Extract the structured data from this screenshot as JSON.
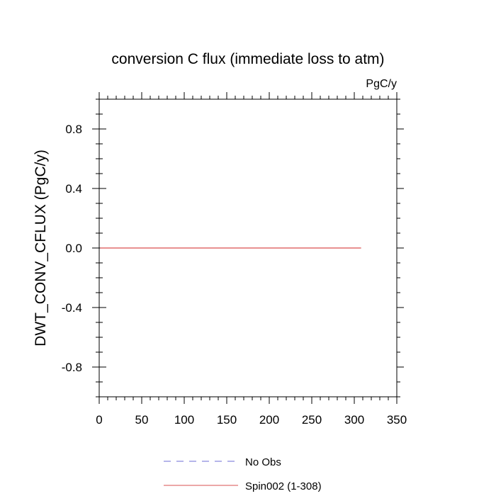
{
  "chart_data": {
    "type": "line",
    "title": "conversion C flux (immediate loss to atm)",
    "units": "PgC/y",
    "ylabel": "DWT_CONV_CFLUX  (PgC/y)",
    "xlabel": "",
    "xlim": [
      0,
      350
    ],
    "ylim": [
      -1,
      1
    ],
    "xticks": [
      0,
      50,
      100,
      150,
      200,
      250,
      300,
      350
    ],
    "xtick_labels": [
      "0",
      "50",
      "100",
      "150",
      "200",
      "250",
      "300",
      "350"
    ],
    "yticks": [
      -0.8,
      -0.4,
      0.0,
      0.4,
      0.8
    ],
    "ytick_labels": [
      "-0.8",
      "-0.4",
      "0.0",
      "0.4",
      "0.8"
    ],
    "grid": false,
    "legend_position": "bottom",
    "series": [
      {
        "name": "No Obs",
        "color": "#6b6bd6",
        "dash": "dashed",
        "x": [],
        "y": []
      },
      {
        "name": "Spin002 (1-308)",
        "color": "#d94f4f",
        "dash": "solid",
        "x": [
          1,
          308
        ],
        "y": [
          0.0,
          0.0
        ]
      }
    ]
  }
}
